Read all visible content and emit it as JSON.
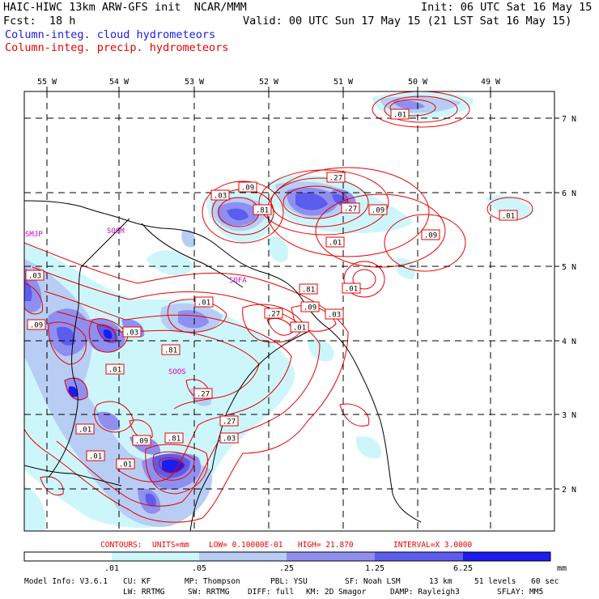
{
  "header": {
    "title_left": "HAIC-HIWC 13km ARW-GFS init  NCAR/MMM",
    "init": "Init: 06 UTC Sat 16 May 15",
    "fcst": "Fcst:  18 h",
    "valid": "Valid: 00 UTC Sun 17 May 15 (21 LST Sat 16 May 15)",
    "field_cloud": "Column-integ. cloud hydrometeors",
    "field_precip": "Column-integ. precip. hydrometeors"
  },
  "colors": {
    "cloud_text": "#1a1ae6",
    "precip_text": "#e60000",
    "contour": "#e60000",
    "shade": [
      "#cdf6fb",
      "#b7cdf4",
      "#8f8ff0",
      "#5c5cee",
      "#1c1cee"
    ]
  },
  "map": {
    "lon_labels": [
      "55 W",
      "54 W",
      "53 W",
      "52 W",
      "51 W",
      "50 W",
      "49 W"
    ],
    "lat_labels": [
      "7 N",
      "6 N",
      "5 N",
      "4 N",
      "3 N",
      "2 N"
    ],
    "stations": [
      "SMJP",
      "SOCM",
      "SOFA",
      "SOOS"
    ],
    "contour_labels": [
      ".01",
      ".03",
      ".09",
      ".27",
      ".81",
      ".27",
      ".09",
      ".01",
      ".09",
      ".01",
      ".03",
      ".01",
      ".81",
      ".01",
      ".03",
      ".27",
      ".09",
      ".01",
      ".03",
      ".09",
      ".81",
      ".01",
      ".27",
      ".27",
      ".03",
      ".01",
      ".09",
      ".81",
      ".01",
      ".01",
      ".03"
    ]
  },
  "contour_info": {
    "contours": "CONTOURS:",
    "units": "UNITS=mm",
    "low": "LOW= 0.10000E-01",
    "high": "HIGH= 21.870",
    "interval": "INTERVAL=X  3.0000"
  },
  "legend": {
    "ticks": [
      ".01",
      ".05",
      ".25",
      "1.25",
      "6.25"
    ],
    "unit": "mm"
  },
  "model_info": {
    "line1": [
      "Model Info: V3.6.1",
      "CU: KF",
      "MP: Thompson",
      "PBL: YSU",
      "SF: Noah LSM",
      "13 km",
      "51 levels",
      "60 sec"
    ],
    "line2": [
      "LW: RRTMG",
      "SW: RRTMG",
      "DIFF: full",
      "KM: 2D Smagor",
      "DAMP: Rayleigh3",
      "SFLAY: MM5"
    ]
  }
}
